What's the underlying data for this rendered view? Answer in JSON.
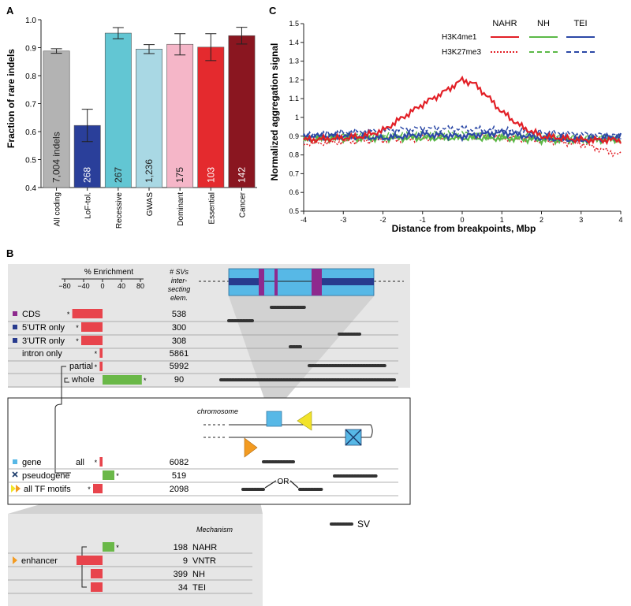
{
  "panel_a": {
    "letter": "A",
    "chart_data": {
      "type": "bar",
      "ylabel": "Fraction of rare indels",
      "ylim": [
        0.4,
        1.0
      ],
      "yticks": [
        "0.4",
        "0.5",
        "0.6",
        "0.7",
        "0.8",
        "0.9",
        "1.0"
      ],
      "categories": [
        "All coding",
        "LoF-tol.",
        "Recessive",
        "GWAS",
        "Dominant",
        "Essential",
        "Cancer"
      ],
      "values": [
        0.888,
        0.622,
        0.952,
        0.895,
        0.912,
        0.902,
        0.943
      ],
      "errors": [
        0.008,
        0.058,
        0.02,
        0.016,
        0.038,
        0.048,
        0.03
      ],
      "counts": [
        "7,004 indels",
        "268",
        "267",
        "1,236",
        "175",
        "103",
        "142"
      ],
      "colors": [
        "#b3b3b3",
        "#2a3f9a",
        "#62c6d3",
        "#a9d8e4",
        "#f5b6c8",
        "#e42a2e",
        "#8a1620"
      ]
    }
  },
  "panel_c": {
    "letter": "C",
    "chart_data": {
      "type": "line",
      "xlabel": "Distance from breakpoints, Mbp",
      "ylabel": "Normalized aggregation signal",
      "xlim": [
        -4,
        4
      ],
      "ylim": [
        0.5,
        1.5
      ],
      "xticks": [
        "-4",
        "-3",
        "-2",
        "-1",
        "0",
        "1",
        "2",
        "3",
        "4"
      ],
      "yticks": [
        "0.5",
        "0.6",
        "0.7",
        "0.8",
        "0.9",
        "1",
        "1.1",
        "1.2",
        "1.3",
        "1.4",
        "1.5"
      ],
      "legend": {
        "columns": [
          "NAHR",
          "NH",
          "TEI"
        ],
        "rows": [
          "H3K4me1",
          "H3K27me3"
        ],
        "colors": [
          "#e21f26",
          "#5bb947",
          "#2b48a6"
        ]
      },
      "series": [
        {
          "name": "H3K4me1 NAHR",
          "style": "solid",
          "color": "#e21f26",
          "x": [
            -4,
            -3,
            -2.5,
            -2,
            -1.5,
            -1,
            -0.5,
            0,
            0.3,
            0.6,
            1,
            1.5,
            2,
            2.5,
            3,
            3.5,
            4
          ],
          "y": [
            0.88,
            0.89,
            0.9,
            0.93,
            1.0,
            1.07,
            1.13,
            1.2,
            1.18,
            1.12,
            1.03,
            0.95,
            0.9,
            0.89,
            0.88,
            0.88,
            0.88
          ]
        },
        {
          "name": "H3K4me1 NH",
          "style": "solid",
          "color": "#5bb947",
          "x": [
            -4,
            -3,
            -2,
            -1,
            0,
            1,
            2,
            3,
            4
          ],
          "y": [
            0.88,
            0.89,
            0.89,
            0.89,
            0.89,
            0.89,
            0.88,
            0.88,
            0.88
          ]
        },
        {
          "name": "H3K4me1 TEI",
          "style": "solid",
          "color": "#2b48a6",
          "x": [
            -4,
            -3,
            -2,
            -1,
            0,
            1,
            2,
            3,
            4
          ],
          "y": [
            0.9,
            0.9,
            0.89,
            0.91,
            0.9,
            0.92,
            0.89,
            0.88,
            0.9
          ]
        },
        {
          "name": "H3K27me3 NAHR",
          "style": "dotted",
          "color": "#e21f26",
          "x": [
            -4,
            -3,
            -2,
            -1,
            0,
            1,
            2,
            3,
            4
          ],
          "y": [
            0.86,
            0.87,
            0.88,
            0.89,
            0.9,
            0.89,
            0.88,
            0.86,
            0.8
          ]
        },
        {
          "name": "H3K27me3 NH",
          "style": "dashed",
          "color": "#5bb947",
          "x": [
            -4,
            -3,
            -2,
            -1,
            0,
            1,
            2,
            3,
            4
          ],
          "y": [
            0.89,
            0.9,
            0.9,
            0.91,
            0.91,
            0.9,
            0.9,
            0.89,
            0.89
          ]
        },
        {
          "name": "H3K27me3 TEI",
          "style": "dashed",
          "color": "#2b48a6",
          "x": [
            -4,
            -3,
            -2,
            -1,
            0,
            1,
            2,
            3,
            4
          ],
          "y": [
            0.9,
            0.92,
            0.93,
            0.94,
            0.94,
            0.93,
            0.92,
            0.91,
            0.9
          ]
        }
      ]
    }
  },
  "panel_b": {
    "letter": "B",
    "enrichment_title": "% Enrichment",
    "enrichment_ticks": [
      "−80",
      "−40",
      "0",
      "40",
      "80"
    ],
    "sv_header": [
      "# SVs",
      "inter-",
      "secting",
      "elem."
    ],
    "gene_rows": [
      {
        "label": "CDS",
        "icon": "purple-square",
        "count": "538",
        "enrich": -64,
        "star": true
      },
      {
        "label": "5'UTR only",
        "icon": "navy-square",
        "count": "300",
        "enrich": -45,
        "star": true
      },
      {
        "label": "3'UTR only",
        "icon": "navy-square",
        "count": "308",
        "enrich": -45,
        "star": true
      },
      {
        "label": "intron only",
        "icon": "",
        "count": "5861",
        "enrich": -6,
        "star": true
      },
      {
        "label": "partial",
        "icon": "",
        "count": "5992",
        "enrich": -6,
        "star": true
      },
      {
        "label": "whole",
        "icon": "",
        "count": "90",
        "enrich": 83,
        "star": true
      }
    ],
    "chromosome_label": "chromosome",
    "element_rows": [
      {
        "label": "gene",
        "sublabel": "all",
        "icon": "cyan-square",
        "count": "6082",
        "enrich": -6,
        "star": true
      },
      {
        "label": "pseudogene",
        "sublabel": "",
        "icon": "x-square",
        "count": "519",
        "enrich": 25,
        "star": true
      },
      {
        "label": "all TF motifs",
        "sublabel": "",
        "icon": "triangles",
        "count": "2098",
        "enrich": -20,
        "star": true
      }
    ],
    "or_label": "OR",
    "sv_legend": "SV",
    "mechanism_title": "Mechanism",
    "enhancer_label": "enhancer",
    "enhancer_rows": [
      {
        "count": "198",
        "mechanism": "NAHR",
        "enrich": 25,
        "star": true
      },
      {
        "count": "9",
        "mechanism": "VNTR",
        "enrich": -55,
        "star": false
      },
      {
        "count": "399",
        "mechanism": "NH",
        "enrich": -25,
        "star": false
      },
      {
        "count": "34",
        "mechanism": "TEI",
        "enrich": -25,
        "star": false
      }
    ],
    "colors": {
      "positive": "#6ab848",
      "negative": "#e8444c",
      "panel_bg": "#e6e6e6"
    }
  }
}
